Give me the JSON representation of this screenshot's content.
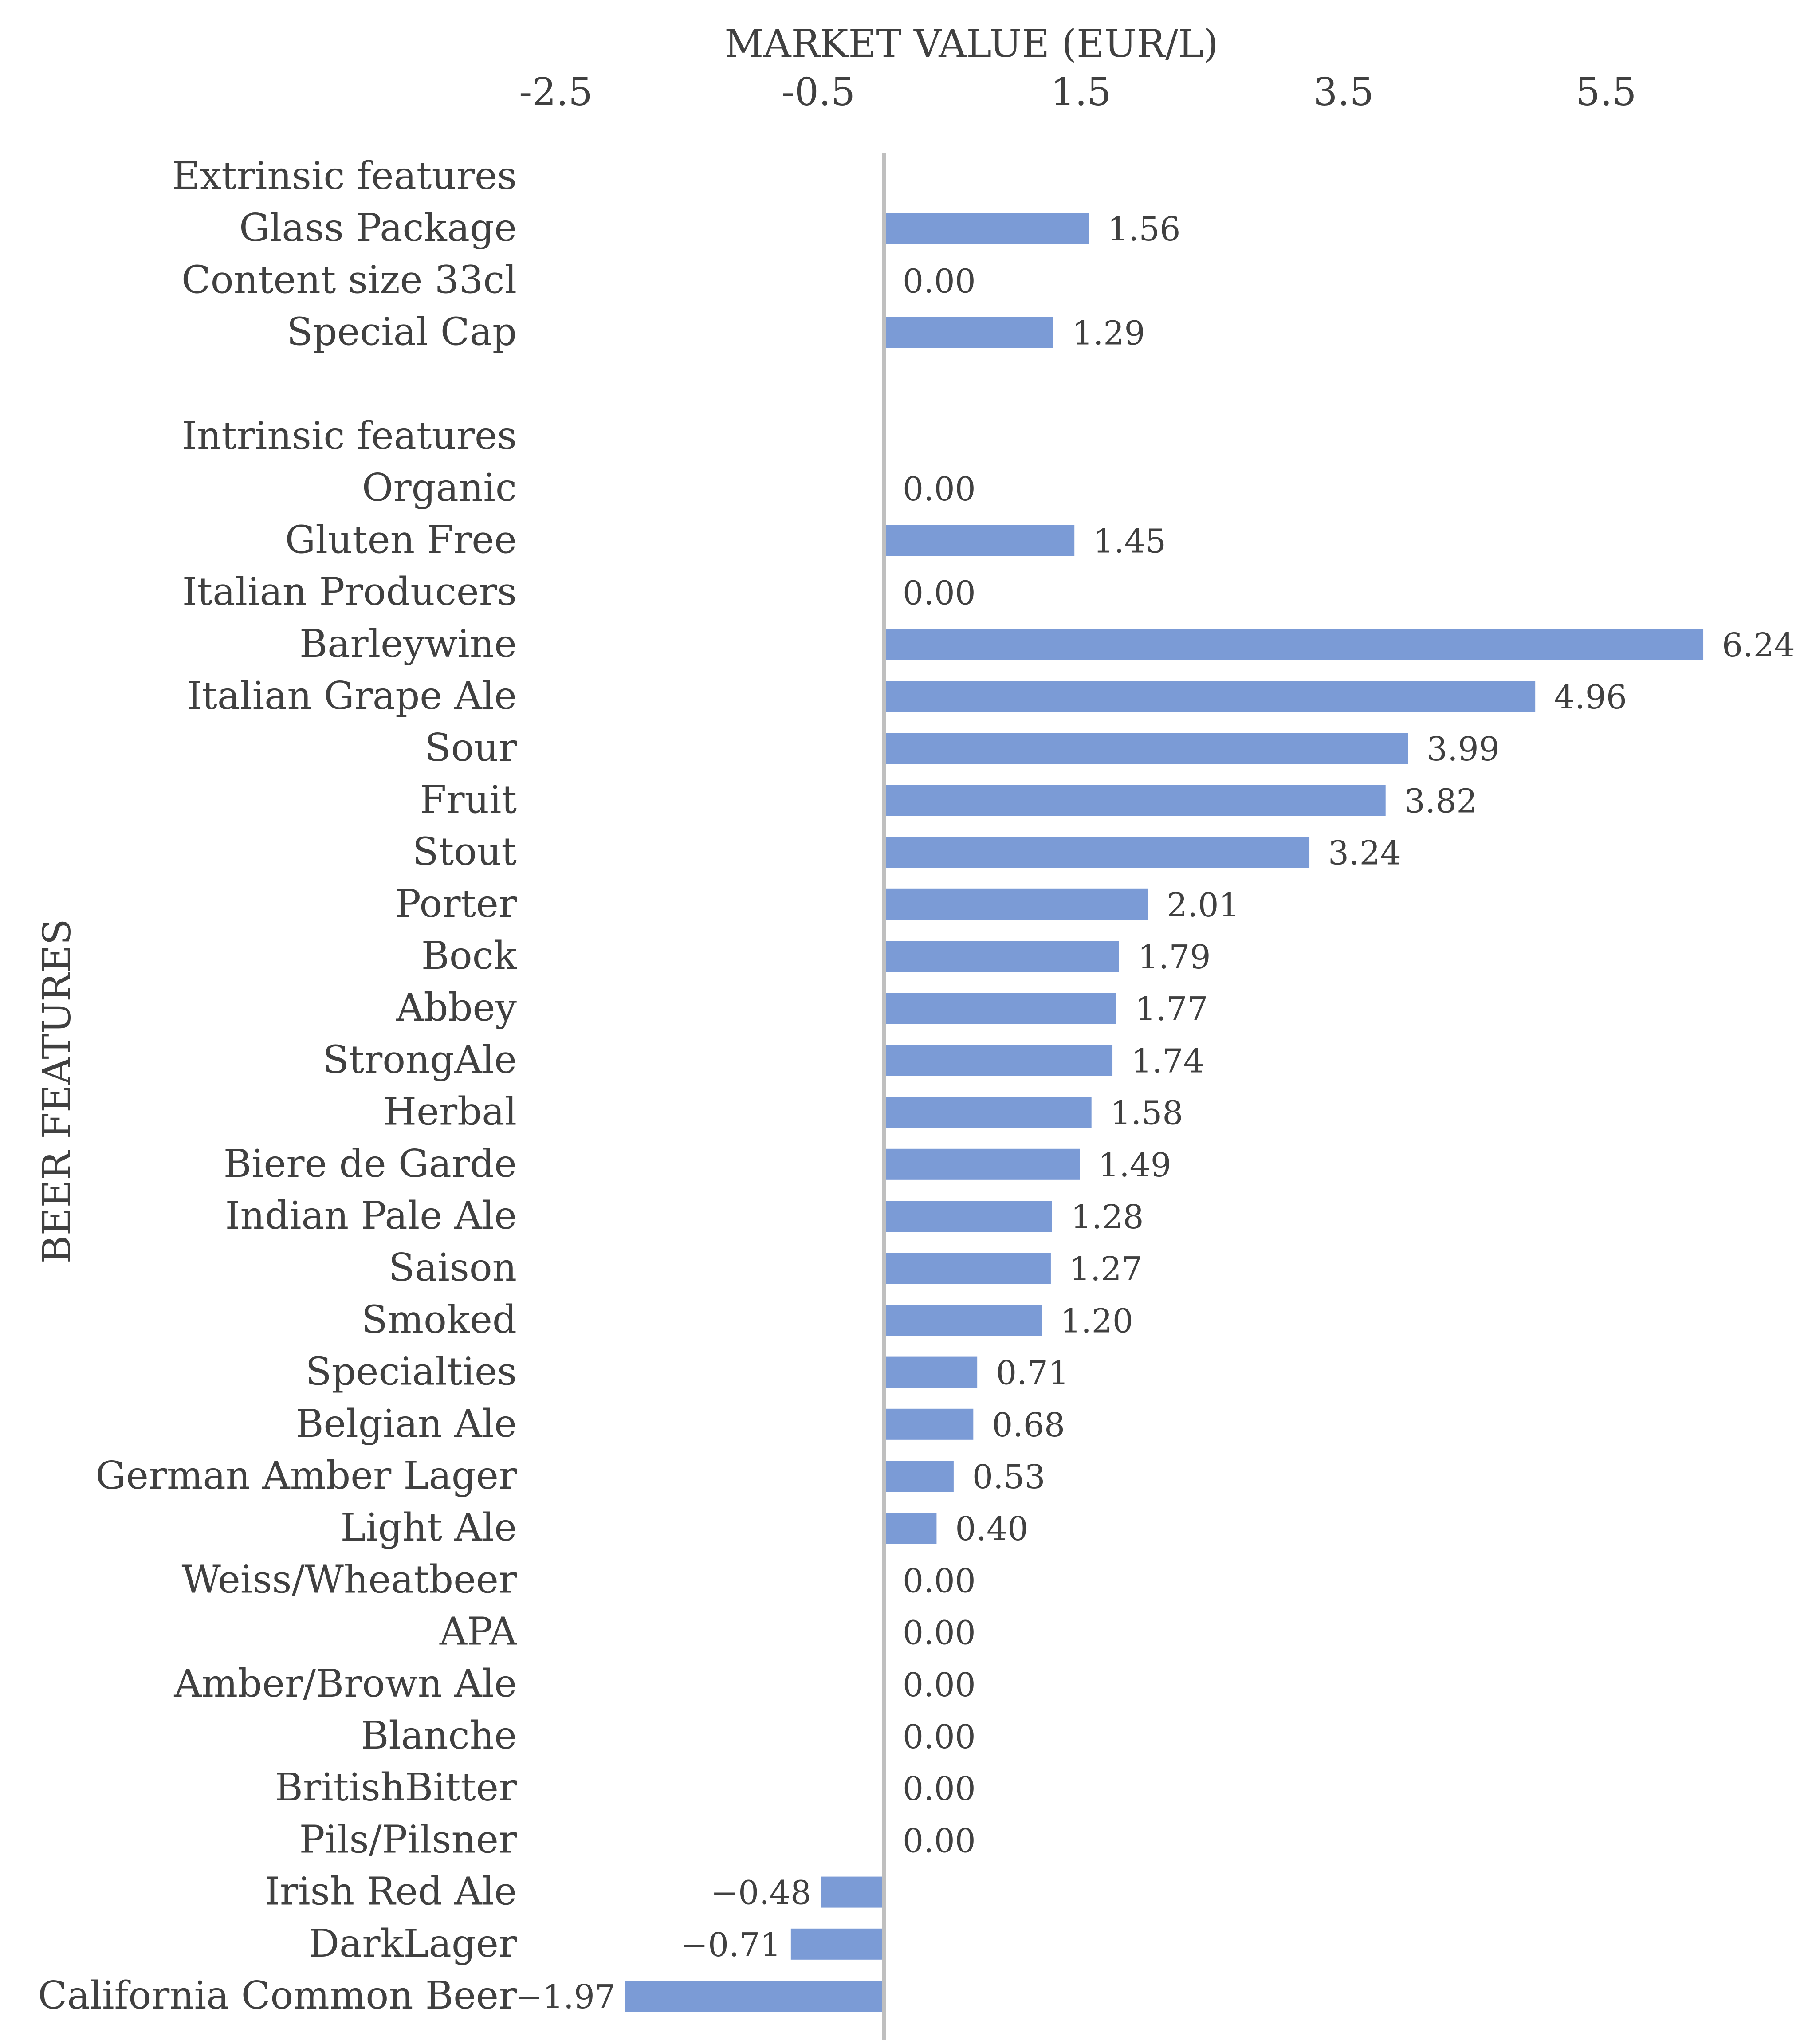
{
  "chart_data": {
    "type": "bar",
    "orientation": "horizontal",
    "title": "",
    "xlabel": "MARKET VALUE (EUR/L)",
    "ylabel": "BEER FEATURES",
    "xlim": [
      -2.5,
      6.5
    ],
    "x_ticks": [
      "-2.5",
      "-0.5",
      "1.5",
      "3.5",
      "5.5"
    ],
    "x_axis_position": "top",
    "grid": false,
    "bar_color": "#7b9bd6",
    "categories": [
      "Extrinsic  features",
      "Glass Package",
      "Content size 33cl",
      "Special Cap",
      "",
      "Intrinsic features",
      "Organic",
      "Gluten Free",
      "Italian Producers",
      "Barleywine",
      "Italian Grape Ale",
      "Sour",
      "Fruit",
      "Stout",
      "Porter",
      "Bock",
      "Abbey",
      "StrongAle",
      "Herbal",
      "Biere de Garde",
      "Indian Pale Ale",
      "Saison",
      "Smoked",
      "Specialties",
      "Belgian Ale",
      "German Amber Lager",
      "Light Ale",
      "Weiss/Wheatbeer",
      "APA",
      "Amber/Brown Ale",
      "Blanche",
      "BritishBitter",
      "Pils/Pilsner",
      "Irish Red Ale",
      "DarkLager",
      "California Common Beer"
    ],
    "values": [
      null,
      1.56,
      0.0,
      1.29,
      null,
      null,
      0.0,
      1.45,
      0.0,
      6.24,
      4.96,
      3.99,
      3.82,
      3.24,
      2.01,
      1.79,
      1.77,
      1.74,
      1.58,
      1.49,
      1.28,
      1.27,
      1.2,
      0.71,
      0.68,
      0.53,
      0.4,
      0.0,
      0.0,
      0.0,
      0.0,
      0.0,
      0.0,
      -0.48,
      -0.71,
      -1.97
    ],
    "data_labels": [
      "",
      "1.56",
      "0.00",
      "1.29",
      "",
      "",
      "0.00",
      "1.45",
      "0.00",
      "6.24",
      "4.96",
      "3.99",
      "3.82",
      "3.24",
      "2.01",
      "1.79",
      "1.77",
      "1.74",
      "1.58",
      "1.49",
      "1.28",
      "1.27",
      "1.20",
      "0.71",
      "0.68",
      "0.53",
      "0.40",
      "0.00",
      "0.00",
      "0.00",
      "0.00",
      "0.00",
      "0.00",
      "−0.48",
      "−0.71",
      "−1.97"
    ]
  }
}
